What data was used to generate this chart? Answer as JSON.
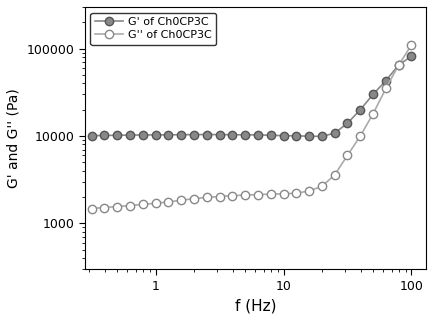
{
  "title": "",
  "xlabel": "f (Hz)",
  "ylabel": "G' and G'' (Pa)",
  "xlim": [
    0.28,
    130
  ],
  "ylim": [
    300,
    300000
  ],
  "background_color": "#ffffff",
  "G_prime": {
    "label": "G' of Ch0CP3C",
    "color": "#888888",
    "marker": "o",
    "markerfacecolor": "#888888",
    "markeredgecolor": "#555555",
    "markersize": 6,
    "linewidth": 1.2,
    "x": [
      0.316,
      0.398,
      0.501,
      0.631,
      0.794,
      1.0,
      1.259,
      1.585,
      1.995,
      2.512,
      3.162,
      3.981,
      5.012,
      6.31,
      7.943,
      10.0,
      12.59,
      15.85,
      19.95,
      25.12,
      31.62,
      39.81,
      50.12,
      63.1,
      79.43,
      100.0
    ],
    "y": [
      10100,
      10150,
      10200,
      10250,
      10280,
      10300,
      10320,
      10350,
      10380,
      10400,
      10380,
      10350,
      10320,
      10300,
      10200,
      10100,
      10050,
      9950,
      9900,
      10800,
      14000,
      20000,
      30000,
      43000,
      65000,
      82000
    ]
  },
  "G_double_prime": {
    "label": "G'' of Ch0CP3C",
    "color": "#aaaaaa",
    "marker": "o",
    "markerfacecolor": "#ffffff",
    "markeredgecolor": "#888888",
    "markersize": 6,
    "linewidth": 1.2,
    "x": [
      0.316,
      0.398,
      0.501,
      0.631,
      0.794,
      1.0,
      1.259,
      1.585,
      1.995,
      2.512,
      3.162,
      3.981,
      5.012,
      6.31,
      7.943,
      10.0,
      12.59,
      15.85,
      19.95,
      25.12,
      31.62,
      39.81,
      50.12,
      63.1,
      79.43,
      100.0
    ],
    "y": [
      1480,
      1520,
      1560,
      1600,
      1650,
      1700,
      1760,
      1840,
      1920,
      1980,
      2030,
      2080,
      2110,
      2140,
      2160,
      2180,
      2220,
      2350,
      2650,
      3600,
      6000,
      10000,
      18000,
      35000,
      65000,
      110000
    ]
  }
}
